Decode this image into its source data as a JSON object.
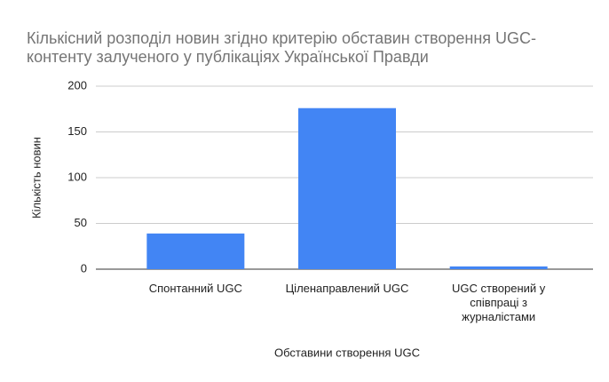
{
  "chart_data": {
    "type": "bar",
    "title": "Кількісний розподіл новин згідно критерію обставин створення UGC-контенту залученого у публікаціях Української Правди",
    "x_label": "Обставини створення UGC",
    "y_label": "Кількість новин",
    "categories": [
      "Спонтанний UGC",
      "Цiленаправлений UGC",
      "UGC створений у співпраці з журналістами"
    ],
    "values": [
      39,
      176,
      3
    ],
    "color": "#4285f4",
    "ylim": [
      0,
      200
    ],
    "yticks": [
      0,
      50,
      100,
      150,
      200
    ],
    "grid": true
  }
}
